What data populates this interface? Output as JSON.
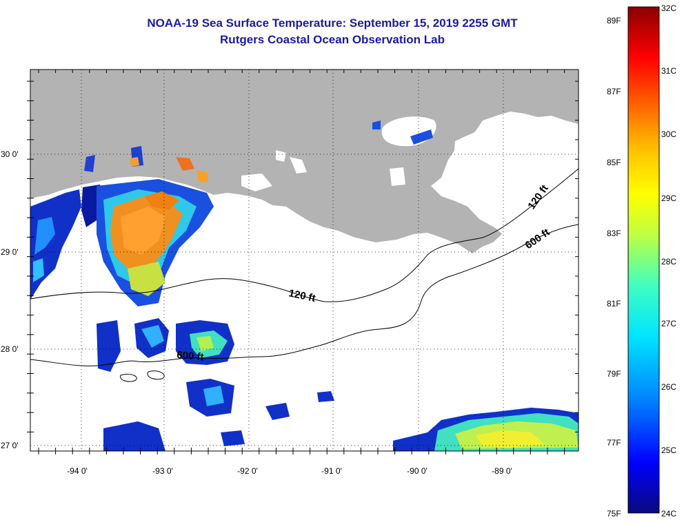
{
  "title": "NOAA-19 Sea Surface Temperature:  September 15, 2019 2255 GMT",
  "subtitle": "Rutgers Coastal Ocean Observation Lab",
  "map": {
    "longitude_labels": [
      "-94 0'",
      "-93 0'",
      "-92 0'",
      "-91 0'",
      "-90 0'",
      "-89 0'"
    ],
    "latitude_labels": [
      "30 0'",
      "29 0'",
      "28 0'",
      "27 0'"
    ],
    "contour_labels": [
      "120 ft",
      "120 ft",
      "600 ft",
      "600 ft"
    ],
    "land_color": "#b3b3b3",
    "no_data_color": "#ffffff",
    "grid": "dotted"
  },
  "colorbar": {
    "fahrenheit_labels": [
      "89F",
      "87F",
      "85F",
      "83F",
      "81F",
      "79F",
      "77F",
      "75F"
    ],
    "celsius_labels": [
      "32C",
      "31C",
      "30C",
      "29C",
      "28C",
      "27C",
      "26C",
      "25C",
      "24C"
    ],
    "range_c": [
      24,
      32
    ],
    "colors": [
      "#0a0a80",
      "#0000ff",
      "#0080ff",
      "#00e5ff",
      "#40ffbf",
      "#bfff40",
      "#ffff00",
      "#ffbf00",
      "#ff6a00",
      "#ff0000",
      "#8b0000"
    ]
  }
}
